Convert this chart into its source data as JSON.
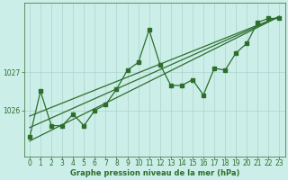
{
  "title": "Graphe pression niveau de la mer (hPa)",
  "bg_color": "#cceee8",
  "grid_color": "#aad4ce",
  "line_color": "#2d6e2d",
  "xlim": [
    -0.5,
    23.5
  ],
  "ylim": [
    1024.8,
    1028.8
  ],
  "yticks": [
    1026,
    1027
  ],
  "xticks": [
    0,
    1,
    2,
    3,
    4,
    5,
    6,
    7,
    8,
    9,
    10,
    11,
    12,
    13,
    14,
    15,
    16,
    17,
    18,
    19,
    20,
    21,
    22,
    23
  ],
  "main_x": [
    0,
    1,
    2,
    3,
    4,
    5,
    6,
    7,
    8,
    9,
    10,
    11,
    12,
    13,
    14,
    15,
    16,
    17,
    18,
    19,
    20,
    21,
    22,
    23
  ],
  "main_y": [
    1025.3,
    1026.5,
    1025.6,
    1025.6,
    1025.9,
    1025.6,
    1026.0,
    1026.15,
    1026.55,
    1027.05,
    1027.25,
    1028.1,
    1027.2,
    1026.65,
    1026.65,
    1026.8,
    1026.4,
    1027.1,
    1027.05,
    1027.5,
    1027.75,
    1028.3,
    1028.4,
    1028.4
  ],
  "trend1_x": [
    0,
    23
  ],
  "trend1_y": [
    1025.2,
    1028.45
  ],
  "trend2_x": [
    0,
    23
  ],
  "trend2_y": [
    1025.55,
    1028.45
  ],
  "trend3_x": [
    0,
    23
  ],
  "trend3_y": [
    1025.85,
    1028.45
  ]
}
